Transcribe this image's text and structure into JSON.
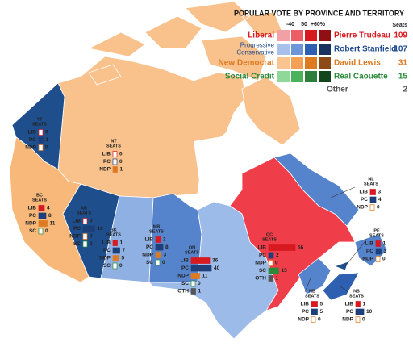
{
  "legend": {
    "title": "POPULAR VOTE BY PROVINCE AND TERRITORY",
    "scale_labels": [
      "-40",
      "50",
      "+60%"
    ],
    "seats_header": "Seats",
    "parties": [
      {
        "name_lines": [
          "Liberal"
        ],
        "leader": "Pierre Trudeau",
        "seats": 109,
        "color": "#d71920",
        "swatches": [
          "#f2a0a6",
          "#ec5d66",
          "#d71920",
          "#8f0f14"
        ]
      },
      {
        "name_lines": [
          "Progressive",
          "Conservative"
        ],
        "leader": "Robert Stanfield",
        "seats": 107,
        "color": "#1e4a8f",
        "swatches": [
          "#a7c1ea",
          "#6d96d8",
          "#2f5fb0",
          "#17325f"
        ]
      },
      {
        "name_lines": [
          "New Democrat"
        ],
        "leader": "David Lewis",
        "seats": 31,
        "color": "#dd7b22",
        "swatches": [
          "#f9c48f",
          "#f4a155",
          "#dd7b22",
          "#8e4a16"
        ]
      },
      {
        "name_lines": [
          "Social Credit"
        ],
        "leader": "Réal Caouette",
        "seats": 15,
        "color": "#2b8a3a",
        "swatches": [
          "#8fd89a",
          "#4bb25c",
          "#2b7f3a",
          "#13461d"
        ]
      },
      {
        "name_lines": [
          "Other"
        ],
        "seats": 2,
        "color": "#555555"
      }
    ]
  },
  "party_colors": {
    "LIB": "#d71920",
    "PC": "#1e3f7a",
    "NDP": "#dd7b22",
    "SC": "#2b8a3a",
    "OTH": "#555555"
  },
  "regions": [
    {
      "label": [
        "YT",
        "SEATS"
      ],
      "color": "#1f4e8c",
      "rows": [
        {
          "party": "LIB",
          "seats": 0
        },
        {
          "party": "PC",
          "seats": 1
        },
        {
          "party": "NDP",
          "seats": 0
        }
      ]
    },
    {
      "label": [
        "NT",
        "SEATS"
      ],
      "color": "#f9c18b",
      "rows": [
        {
          "party": "LIB",
          "seats": 0
        },
        {
          "party": "PC",
          "seats": 0
        },
        {
          "party": "NDP",
          "seats": 1
        }
      ]
    },
    {
      "label": [
        "BC",
        "SEATS"
      ],
      "color": "#f7b87a",
      "rows": [
        {
          "party": "LIB",
          "seats": 4
        },
        {
          "party": "PC",
          "seats": 8
        },
        {
          "party": "NDP",
          "seats": 11
        },
        {
          "party": "SC",
          "seats": 0
        }
      ]
    },
    {
      "label": [
        "AB",
        "SEATS"
      ],
      "color": "#1f4e8c",
      "rows": [
        {
          "party": "LIB",
          "seats": 0
        },
        {
          "party": "PC",
          "seats": 19
        },
        {
          "party": "NDP",
          "seats": 0
        },
        {
          "party": "SC",
          "seats": 0
        }
      ]
    },
    {
      "label": [
        "SK",
        "SEATS"
      ],
      "color": "#8fb0e3",
      "rows": [
        {
          "party": "LIB",
          "seats": 1
        },
        {
          "party": "PC",
          "seats": 7
        },
        {
          "party": "NDP",
          "seats": 5
        },
        {
          "party": "SC",
          "seats": 0
        }
      ]
    },
    {
      "label": [
        "MB",
        "SEATS"
      ],
      "color": "#5583cc",
      "rows": [
        {
          "party": "LIB",
          "seats": 2
        },
        {
          "party": "PC",
          "seats": 8
        },
        {
          "party": "NDP",
          "seats": 3
        },
        {
          "party": "SC",
          "seats": 0
        }
      ]
    },
    {
      "label": [
        "ON",
        "SEATS"
      ],
      "color": "#9dbbe8",
      "rows": [
        {
          "party": "LIB",
          "seats": 36
        },
        {
          "party": "PC",
          "seats": 40
        },
        {
          "party": "NDP",
          "seats": 11
        },
        {
          "party": "SC",
          "seats": 0
        },
        {
          "party": "OTH",
          "seats": 1
        }
      ]
    },
    {
      "label": [
        "QC",
        "SEATS"
      ],
      "color": "#ef3e4a",
      "rows": [
        {
          "party": "LIB",
          "seats": 56
        },
        {
          "party": "PC",
          "seats": 2
        },
        {
          "party": "NDP",
          "seats": 0
        },
        {
          "party": "SC",
          "seats": 15
        },
        {
          "party": "OTH",
          "seats": 1
        }
      ]
    },
    {
      "label": [
        "NL",
        "SEATS"
      ],
      "color": "#5583cc",
      "rows": [
        {
          "party": "LIB",
          "seats": 3
        },
        {
          "party": "PC",
          "seats": 4
        },
        {
          "party": "NDP",
          "seats": 0
        }
      ]
    },
    {
      "label": [
        "PE",
        "SEATS"
      ],
      "color": "#1f4e8c",
      "rows": [
        {
          "party": "LIB",
          "seats": 1
        },
        {
          "party": "PC",
          "seats": 3
        },
        {
          "party": "NDP",
          "seats": 0
        }
      ]
    },
    {
      "label": [
        "NB",
        "SEATS"
      ],
      "color": "#5583cc",
      "rows": [
        {
          "party": "LIB",
          "seats": 5
        },
        {
          "party": "PC",
          "seats": 5
        },
        {
          "party": "NDP",
          "seats": 0
        }
      ]
    },
    {
      "label": [
        "NS",
        "SEATS"
      ],
      "color": "#2f5fb0",
      "rows": [
        {
          "party": "LIB",
          "seats": 1
        },
        {
          "party": "PC",
          "seats": 10
        },
        {
          "party": "NDP",
          "seats": 0
        }
      ]
    }
  ]
}
